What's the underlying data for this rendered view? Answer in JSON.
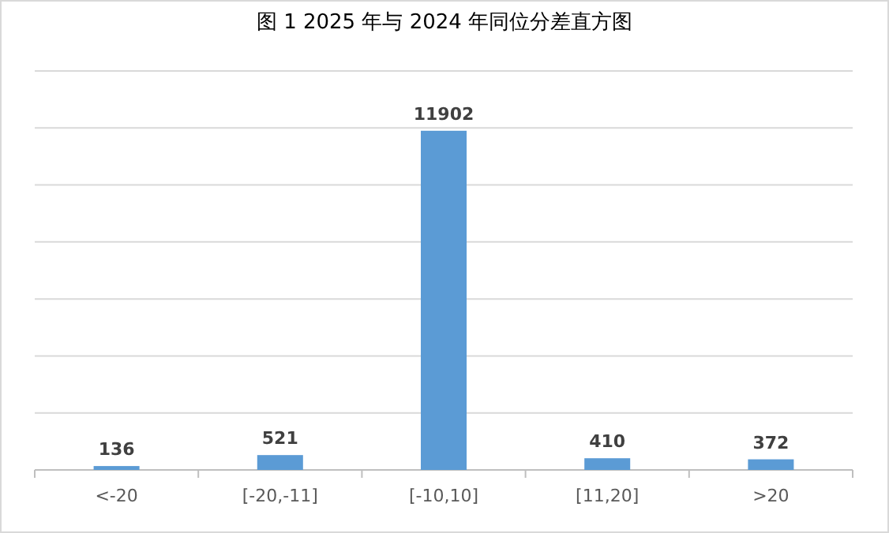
{
  "chart_data": {
    "type": "bar",
    "title": "图 1 2025 年与 2024 年同位分差直方图",
    "categories": [
      "<-20",
      "[-20,-11]",
      "[-10,10]",
      "[11,20]",
      ">20"
    ],
    "values": [
      136,
      521,
      11902,
      410,
      372
    ],
    "color": "#5b9bd5",
    "ylim": [
      0,
      14000
    ],
    "yticks": [
      {
        "value": 0,
        "label": null
      },
      {
        "value": 2000,
        "label": null
      },
      {
        "value": 4000,
        "label": null
      },
      {
        "value": 6000,
        "label": null
      },
      {
        "value": 8000,
        "label": null
      },
      {
        "value": 10000,
        "label": null
      },
      {
        "value": 12000,
        "label": null
      },
      {
        "value": 14000,
        "label": null
      }
    ],
    "grid": "y",
    "tick_labels": "x",
    "data_labels": true
  }
}
